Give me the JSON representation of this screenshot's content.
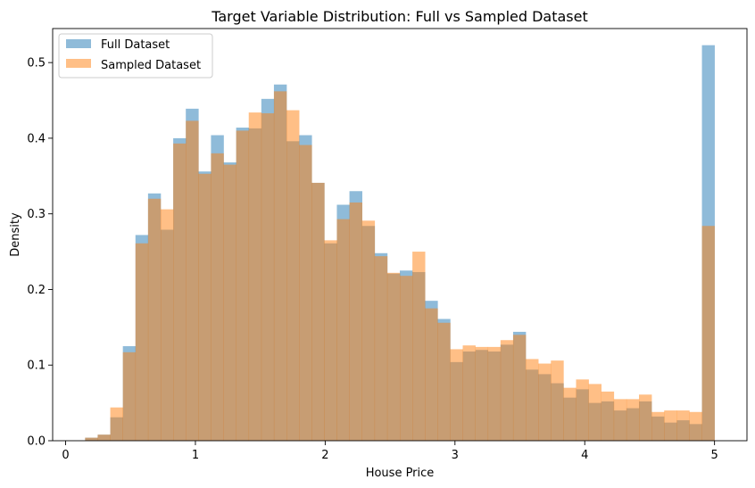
{
  "chart_data": {
    "type": "bar",
    "title": "Target Variable Distribution: Full vs Sampled Dataset",
    "xlabel": "House Price",
    "ylabel": "Density",
    "xlim": [
      -0.1,
      5.25
    ],
    "ylim": [
      0,
      0.545
    ],
    "xticks": [
      0,
      1,
      2,
      3,
      4,
      5
    ],
    "yticks": [
      0.0,
      0.1,
      0.2,
      0.3,
      0.4,
      0.5
    ],
    "xtick_labels": [
      "0",
      "1",
      "2",
      "3",
      "4",
      "5"
    ],
    "ytick_labels": [
      "0.0",
      "0.1",
      "0.2",
      "0.3",
      "0.4",
      "0.5"
    ],
    "grid": false,
    "legend_position": "top-left",
    "bin_edges": [
      0.15,
      0.247,
      0.344,
      0.441,
      0.538,
      0.635,
      0.732,
      0.829,
      0.926,
      1.023,
      1.12,
      1.217,
      1.314,
      1.411,
      1.508,
      1.605,
      1.702,
      1.799,
      1.896,
      1.993,
      2.09,
      2.187,
      2.284,
      2.381,
      2.478,
      2.575,
      2.672,
      2.769,
      2.866,
      2.963,
      3.06,
      3.157,
      3.254,
      3.351,
      3.448,
      3.545,
      3.642,
      3.739,
      3.836,
      3.933,
      4.03,
      4.127,
      4.224,
      4.321,
      4.418,
      4.515,
      4.612,
      4.709,
      4.806,
      4.903,
      5.0
    ],
    "series": [
      {
        "name": "Full Dataset",
        "color": "#1f77b4",
        "opacity": 0.5,
        "values": [
          0.004,
          0.008,
          0.031,
          0.125,
          0.272,
          0.327,
          0.279,
          0.4,
          0.439,
          0.356,
          0.404,
          0.368,
          0.414,
          0.413,
          0.452,
          0.471,
          0.396,
          0.404,
          0.341,
          0.261,
          0.312,
          0.33,
          0.284,
          0.248,
          0.221,
          0.225,
          0.223,
          0.185,
          0.161,
          0.104,
          0.118,
          0.12,
          0.118,
          0.127,
          0.144,
          0.094,
          0.088,
          0.076,
          0.057,
          0.068,
          0.05,
          0.052,
          0.04,
          0.043,
          0.052,
          0.032,
          0.024,
          0.027,
          0.022,
          0.523
        ]
      },
      {
        "name": "Sampled Dataset",
        "color": "#ff7f0e",
        "opacity": 0.5,
        "values": [
          0.004,
          0.008,
          0.044,
          0.117,
          0.261,
          0.32,
          0.306,
          0.393,
          0.423,
          0.353,
          0.38,
          0.365,
          0.41,
          0.434,
          0.433,
          0.462,
          0.437,
          0.391,
          0.341,
          0.265,
          0.293,
          0.315,
          0.291,
          0.244,
          0.222,
          0.218,
          0.25,
          0.175,
          0.156,
          0.121,
          0.126,
          0.124,
          0.124,
          0.133,
          0.14,
          0.108,
          0.102,
          0.106,
          0.07,
          0.081,
          0.075,
          0.065,
          0.055,
          0.055,
          0.061,
          0.038,
          0.04,
          0.04,
          0.038,
          0.284
        ]
      }
    ]
  }
}
